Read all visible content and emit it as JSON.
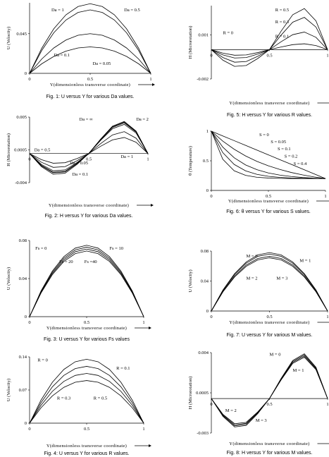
{
  "chart_data": [
    {
      "type": "line",
      "caption": "Fig. 1: U versus Y for various Da values.",
      "xlabel": "Y(dimensionless transverse coordinate)",
      "ylabel": "U (Velocity)",
      "xlim": [
        0,
        1
      ],
      "ylim": [
        0,
        0.08
      ],
      "xticks": [
        0,
        0.5,
        1
      ],
      "yticks": [
        0,
        0.045
      ],
      "x": [
        0,
        0.1,
        0.2,
        0.3,
        0.4,
        0.5,
        0.6,
        0.7,
        0.8,
        0.9,
        1
      ],
      "series": [
        {
          "name": "Da = 1",
          "color": "#000",
          "values": [
            0,
            0.0284,
            0.0506,
            0.0664,
            0.0758,
            0.079,
            0.0758,
            0.0664,
            0.0506,
            0.0284,
            0
          ]
        },
        {
          "name": "Da = 0.5",
          "color": "#000",
          "values": [
            0,
            0.0259,
            0.0461,
            0.0605,
            0.0691,
            0.072,
            0.0691,
            0.0605,
            0.0461,
            0.0259,
            0
          ]
        },
        {
          "name": "Da = 0.1",
          "color": "#000",
          "values": [
            0,
            0.0162,
            0.0288,
            0.0378,
            0.0432,
            0.045,
            0.0432,
            0.0378,
            0.0288,
            0.0162,
            0
          ]
        },
        {
          "name": "Da = 0.05",
          "color": "#000",
          "values": [
            0,
            0.0108,
            0.0192,
            0.0252,
            0.0288,
            0.03,
            0.0288,
            0.0252,
            0.0192,
            0.0108,
            0
          ]
        }
      ]
    },
    {
      "type": "line",
      "caption": "Fig. 5: H versus Y for various R values.",
      "xlabel": "Y(dimensionless transverse coordinate)",
      "ylabel": "H (Microrotation)",
      "xlim": [
        0,
        1
      ],
      "ylim": [
        -0.002,
        0.003
      ],
      "xticks": [
        0,
        0.5,
        1
      ],
      "yticks": [
        -0.002,
        0.001
      ],
      "x": [
        0,
        0.1,
        0.2,
        0.3,
        0.4,
        0.5,
        0.6,
        0.7,
        0.8,
        0.9,
        1
      ],
      "series": [
        {
          "name": "R = 0.5",
          "color": "#000",
          "values": [
            0,
            -0.00024,
            -0.00038,
            -0.00036,
            -0.0002,
            0,
            0.00126,
            0.00238,
            0.0028,
            0.00196,
            0
          ]
        },
        {
          "name": "R = 0.3",
          "color": "#000",
          "values": [
            0,
            -0.00036,
            -0.00057,
            -0.00054,
            -0.0003,
            0,
            0.00099,
            0.00187,
            0.0022,
            0.00154,
            0
          ]
        },
        {
          "name": "R = 0.1",
          "color": "#000",
          "values": [
            0,
            -0.00054,
            -0.000855,
            -0.00081,
            -0.00045,
            0,
            0.00054,
            0.00102,
            0.0012,
            0.00084,
            0
          ]
        },
        {
          "name": "R = 0",
          "color": "#000",
          "values": [
            0,
            -0.00072,
            -0.00114,
            -0.00108,
            -0.0006,
            0,
            0.00018,
            0.00034,
            0.0004,
            0.00028,
            0
          ]
        }
      ]
    },
    {
      "type": "line",
      "caption": "Fig. 2: H versus Y for various Da values.",
      "xlabel": "Y(dimensionless transverse coordinate)",
      "ylabel": "H (Microrotation)",
      "xlim": [
        0,
        1
      ],
      "ylim": [
        -0.004,
        0.005
      ],
      "xticks": [
        0,
        0.5,
        1
      ],
      "yticks": [
        -0.004,
        0.0005,
        0.005
      ],
      "x": [
        0,
        0.1,
        0.2,
        0.3,
        0.4,
        0.5,
        0.6,
        0.7,
        0.8,
        0.9,
        1
      ],
      "series": [
        {
          "name": "Da = ∞",
          "color": "#000",
          "values": [
            0,
            -0.00168,
            -0.00266,
            -0.00252,
            -0.0014,
            0,
            0.00198,
            0.00374,
            0.0044,
            0.00308,
            0
          ]
        },
        {
          "name": "Da = 2",
          "color": "#000",
          "values": [
            0,
            -0.0018,
            -0.00285,
            -0.0027,
            -0.0015,
            0,
            0.00189,
            0.00357,
            0.0042,
            0.00294,
            0
          ]
        },
        {
          "name": "Da = 1",
          "color": "#000",
          "values": [
            0,
            -0.0012,
            -0.0019,
            -0.0018,
            -0.001,
            0,
            0.00135,
            0.00255,
            0.003,
            0.0021,
            0
          ]
        },
        {
          "name": "Da = 0.5",
          "color": "#000",
          "values": [
            0,
            -0.00084,
            -0.00133,
            -0.00126,
            -0.0007,
            0,
            0.00099,
            0.00187,
            0.0022,
            0.00154,
            0
          ]
        },
        {
          "name": "Da = 0.05",
          "color": "#000",
          "values": [
            0,
            -0.0015,
            -0.002375,
            -0.00225,
            -0.00125,
            0,
            0.0018,
            0.0034,
            0.004,
            0.0028,
            0
          ]
        },
        {
          "name": "Da = 0.1",
          "color": "#000",
          "values": [
            0,
            -0.00162,
            -0.002565,
            -0.00243,
            -0.00135,
            0,
            0.001935,
            0.003655,
            0.0043,
            0.00301,
            0
          ]
        }
      ]
    },
    {
      "type": "line",
      "caption": "Fig. 6: θ versus Y for various S values.",
      "xlabel": "Y(dimensionless transverse coordinate)",
      "ylabel": "θ (Temperature)",
      "xlim": [
        0,
        1
      ],
      "ylim": [
        0,
        1
      ],
      "xticks": [
        0,
        0.5,
        1
      ],
      "yticks": [
        0,
        0.5,
        1
      ],
      "x": [
        0,
        0.1,
        0.2,
        0.3,
        0.4,
        0.5,
        0.6,
        0.7,
        0.8,
        0.9,
        1
      ],
      "series": [
        {
          "name": "S = 0",
          "color": "#000",
          "values": [
            1,
            0.92,
            0.84,
            0.76,
            0.68,
            0.6,
            0.52,
            0.44,
            0.36,
            0.28,
            0.2
          ]
        },
        {
          "name": "S = 0.05",
          "color": "#000",
          "values": [
            1,
            0.833,
            0.695,
            0.582,
            0.49,
            0.415,
            0.354,
            0.303,
            0.262,
            0.228,
            0.2
          ]
        },
        {
          "name": "S = 0.1",
          "color": "#000",
          "values": [
            1,
            0.731,
            0.551,
            0.43,
            0.35,
            0.295,
            0.259,
            0.235,
            0.218,
            0.207,
            0.2
          ]
        },
        {
          "name": "S = 0.2",
          "color": "#000",
          "values": [
            1,
            0.638,
            0.439,
            0.33,
            0.271,
            0.238,
            0.22,
            0.21,
            0.205,
            0.202,
            0.2
          ]
        },
        {
          "name": "S = 0.4",
          "color": "#000",
          "values": [
            1,
            0.526,
            0.332,
            0.254,
            0.222,
            0.209,
            0.204,
            0.2,
            0.2,
            0.2,
            0.2
          ]
        }
      ]
    },
    {
      "type": "line",
      "caption": "Fig. 3: U versus Y for various Fs values",
      "xlabel": "Y(dimensionless transverse coordinate)",
      "ylabel": "U (Velocity)",
      "xlim": [
        0,
        1
      ],
      "ylim": [
        0,
        0.08
      ],
      "xticks": [
        0,
        0.5,
        1
      ],
      "yticks": [
        0,
        0.04,
        0.08
      ],
      "x": [
        0,
        0.1,
        0.2,
        0.3,
        0.4,
        0.5,
        0.6,
        0.7,
        0.8,
        0.9,
        1
      ],
      "series": [
        {
          "name": "Fs = 0",
          "color": "#000",
          "values": [
            0,
            0.027,
            0.048,
            0.063,
            0.072,
            0.075,
            0.072,
            0.063,
            0.048,
            0.027,
            0
          ]
        },
        {
          "name": "Fs = 10",
          "color": "#000",
          "values": [
            0,
            0.0263,
            0.0467,
            0.0613,
            0.0701,
            0.073,
            0.0701,
            0.0613,
            0.0467,
            0.0263,
            0
          ]
        },
        {
          "name": "Fs = 20",
          "color": "#000",
          "values": [
            0,
            0.0256,
            0.0454,
            0.0596,
            0.0682,
            0.071,
            0.0682,
            0.0596,
            0.0454,
            0.0256,
            0
          ]
        },
        {
          "name": "Fs =40",
          "color": "#000",
          "values": [
            0,
            0.0248,
            0.0442,
            0.058,
            0.0662,
            0.069,
            0.0662,
            0.058,
            0.0442,
            0.0248,
            0
          ]
        }
      ]
    },
    {
      "type": "line",
      "caption": "Fig. 7: U versus Y for various M values.",
      "xlabel": "Y(dimensionless transverse coordinate)",
      "ylabel": "U (Velocity)",
      "xlim": [
        0,
        1
      ],
      "ylim": [
        0,
        0.08
      ],
      "xticks": [
        0,
        0.5,
        1
      ],
      "yticks": [
        0,
        0.04,
        0.08
      ],
      "x": [
        0,
        0.1,
        0.2,
        0.3,
        0.4,
        0.5,
        0.6,
        0.7,
        0.8,
        0.9,
        1
      ],
      "series": [
        {
          "name": "M = 0",
          "color": "#000",
          "values": [
            0,
            0.0281,
            0.0499,
            0.0655,
            0.0749,
            0.078,
            0.0749,
            0.0655,
            0.0499,
            0.0281,
            0
          ]
        },
        {
          "name": "M = 1",
          "color": "#000",
          "values": [
            0,
            0.0274,
            0.0486,
            0.0638,
            0.073,
            0.076,
            0.073,
            0.0638,
            0.0486,
            0.0274,
            0
          ]
        },
        {
          "name": "M = 2",
          "color": "#000",
          "values": [
            0,
            0.0263,
            0.0467,
            0.0613,
            0.0701,
            0.073,
            0.0701,
            0.0613,
            0.0467,
            0.0263,
            0
          ]
        },
        {
          "name": "M = 3",
          "color": "#000",
          "values": [
            0,
            0.0256,
            0.0454,
            0.0596,
            0.0682,
            0.071,
            0.0682,
            0.0596,
            0.0454,
            0.0256,
            0
          ]
        }
      ]
    },
    {
      "type": "line",
      "caption": "Fig. 4: U versus Y for various R values.",
      "xlabel": "Y(dimensionless transverse coordinate)",
      "ylabel": "U (Velocity)",
      "xlim": [
        0,
        1
      ],
      "ylim": [
        0,
        0.14
      ],
      "xticks": [
        0,
        0.5,
        1
      ],
      "yticks": [
        0,
        0.07,
        0.14
      ],
      "x": [
        0,
        0.1,
        0.2,
        0.3,
        0.4,
        0.5,
        0.6,
        0.7,
        0.8,
        0.9,
        1
      ],
      "series": [
        {
          "name": "R = 0",
          "color": "#000",
          "values": [
            0,
            0.0486,
            0.0864,
            0.1134,
            0.1296,
            0.135,
            0.1296,
            0.1134,
            0.0864,
            0.0486,
            0
          ]
        },
        {
          "name": "R = 0.1",
          "color": "#000",
          "values": [
            0,
            0.0432,
            0.0768,
            0.1008,
            0.1152,
            0.12,
            0.1152,
            0.1008,
            0.0768,
            0.0432,
            0
          ]
        },
        {
          "name": "R = 0.3",
          "color": "#000",
          "values": [
            0,
            0.0378,
            0.0672,
            0.0882,
            0.1008,
            0.105,
            0.1008,
            0.0882,
            0.0672,
            0.0378,
            0
          ]
        },
        {
          "name": "R = 0.5",
          "color": "#000",
          "values": [
            0,
            0.0324,
            0.0576,
            0.0756,
            0.0864,
            0.09,
            0.0864,
            0.0756,
            0.0576,
            0.0324,
            0
          ]
        }
      ]
    },
    {
      "type": "line",
      "caption": "Fig. 8: H versus Y for various M values.",
      "xlabel": "Y(dimensionless transverse coordinate)",
      "ylabel": "H (Microrotation)",
      "xlim": [
        0,
        1
      ],
      "ylim": [
        -0.003,
        0.004
      ],
      "xticks": [
        0,
        0.5,
        1
      ],
      "yticks": [
        -0.003,
        0.0005,
        0.004
      ],
      "x": [
        0,
        0.1,
        0.2,
        0.3,
        0.4,
        0.5,
        0.6,
        0.7,
        0.8,
        0.9,
        1
      ],
      "series": [
        {
          "name": "M = 0",
          "color": "#000",
          "values": [
            0,
            -0.00156,
            -0.00247,
            -0.00234,
            -0.0013,
            0,
            0.001755,
            0.003315,
            0.0039,
            0.00273,
            0
          ]
        },
        {
          "name": "M = 1",
          "color": "#000",
          "values": [
            0,
            -0.0015,
            -0.002375,
            -0.00225,
            -0.00125,
            0,
            0.00171,
            0.00323,
            0.0038,
            0.00266,
            0
          ]
        },
        {
          "name": "M = 2",
          "color": "#000",
          "values": [
            0,
            -0.00144,
            -0.00228,
            -0.00216,
            -0.0012,
            0,
            0.001665,
            0.003145,
            0.0037,
            0.00259,
            0
          ]
        },
        {
          "name": "M = 3",
          "color": "#000",
          "values": [
            0,
            -0.00138,
            -0.002185,
            -0.00207,
            -0.00115,
            0,
            0.00162,
            0.00306,
            0.0036,
            0.00252,
            0
          ]
        }
      ]
    }
  ]
}
